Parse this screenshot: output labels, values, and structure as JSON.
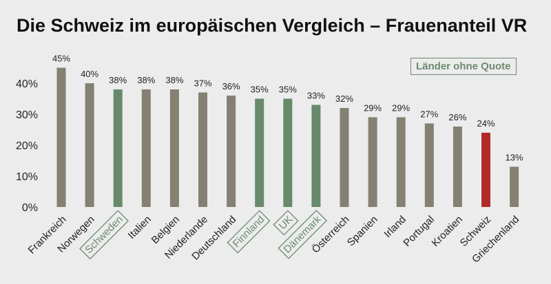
{
  "chart_data": {
    "type": "bar",
    "title": "Die Schweiz im europäischen Vergleich – Frauenanteil VR",
    "xlabel": "",
    "ylabel": "",
    "ylim": [
      0,
      45
    ],
    "yticks": [
      0,
      10,
      20,
      30,
      40
    ],
    "ytick_labels": [
      "0%",
      "10%",
      "20%",
      "30%",
      "40%"
    ],
    "legend": {
      "label": "Länder ohne Quote",
      "placement": "top-right"
    },
    "categories": [
      "Frankreich",
      "Norwegen",
      "Schweden",
      "Italien",
      "Belgien",
      "Niederlande",
      "Deutschland",
      "Finnland",
      "UK",
      "Dänemark",
      "Österreich",
      "Spanien",
      "Irland",
      "Portugal",
      "Kroatien",
      "Schweiz",
      "Griechenland"
    ],
    "values": [
      45,
      40,
      38,
      38,
      38,
      37,
      36,
      35,
      35,
      33,
      32,
      29,
      29,
      27,
      26,
      24,
      13
    ],
    "value_labels": [
      "45%",
      "40%",
      "38%",
      "38%",
      "38%",
      "37%",
      "36%",
      "35%",
      "35%",
      "33%",
      "32%",
      "29%",
      "29%",
      "27%",
      "26%",
      "24%",
      "13%"
    ],
    "groups": [
      "quota",
      "quota",
      "no-quota",
      "quota",
      "quota",
      "quota",
      "quota",
      "no-quota",
      "no-quota",
      "no-quota",
      "quota",
      "quota",
      "quota",
      "quota",
      "quota",
      "highlight",
      "quota"
    ]
  },
  "colors": {
    "quota": "#848173",
    "no_quota": "#678a6b",
    "highlight": "#b22b2b",
    "no_quota_text": "#6b8a6e"
  }
}
